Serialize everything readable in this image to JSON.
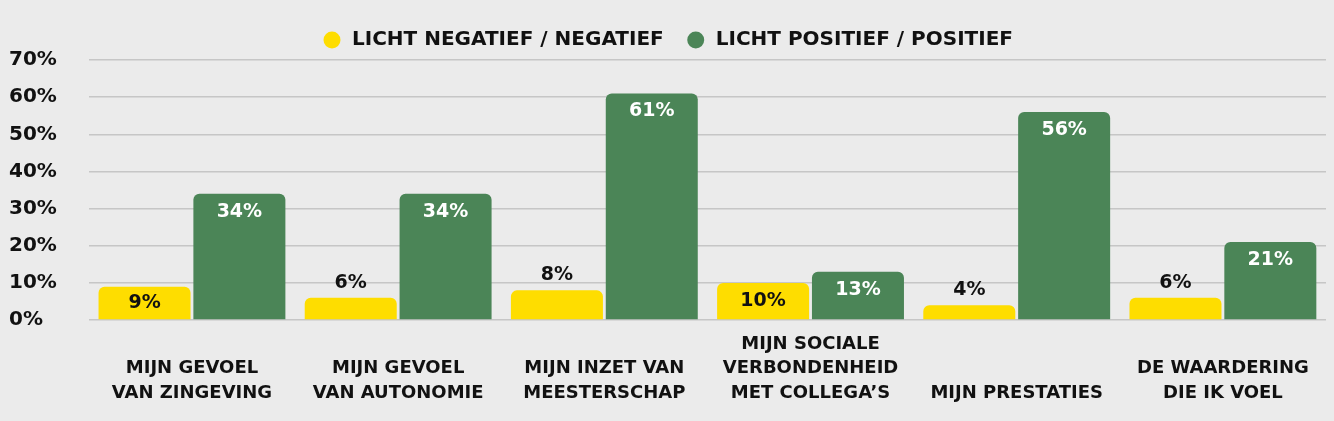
{
  "chart_data": {
    "type": "bar",
    "categories": [
      "MIJN GEVOEL VAN ZINGEVING",
      "MIJN GEVOEL VAN AUTONOMIE",
      "MIJN INZET VAN MEESTERSCHAP",
      "MIJN SOCIALE VERBONDENHEID MET COLLEGA’S",
      "MIJN PRESTATIES",
      "DE WAARDERING DIE IK VOEL"
    ],
    "series": [
      {
        "name": "LICHT NEGATIEF / NEGATIEF",
        "color": "#fedd00",
        "values": [
          9,
          6,
          8,
          10,
          4,
          6
        ],
        "value_labels": [
          "9%",
          "6%",
          "8%",
          "10%",
          "4%",
          "6%"
        ]
      },
      {
        "name": "LICHT POSITIEF / POSITIEF",
        "color": "#4b8557",
        "values": [
          34,
          34,
          61,
          13,
          56,
          21
        ],
        "value_labels": [
          "34%",
          "34%",
          "61%",
          "13%",
          "56%",
          "21%"
        ]
      }
    ],
    "ylim": [
      0,
      70
    ],
    "yticks": [
      {
        "value": 0,
        "label": "0%"
      },
      {
        "value": 10,
        "label": "10%"
      },
      {
        "value": 20,
        "label": "20%"
      },
      {
        "value": 30,
        "label": "30%"
      },
      {
        "value": 40,
        "label": "40%"
      },
      {
        "value": 50,
        "label": "50%"
      },
      {
        "value": 60,
        "label": "60%"
      },
      {
        "value": 70,
        "label": "70%"
      }
    ],
    "grid": "y",
    "legend": "top"
  }
}
